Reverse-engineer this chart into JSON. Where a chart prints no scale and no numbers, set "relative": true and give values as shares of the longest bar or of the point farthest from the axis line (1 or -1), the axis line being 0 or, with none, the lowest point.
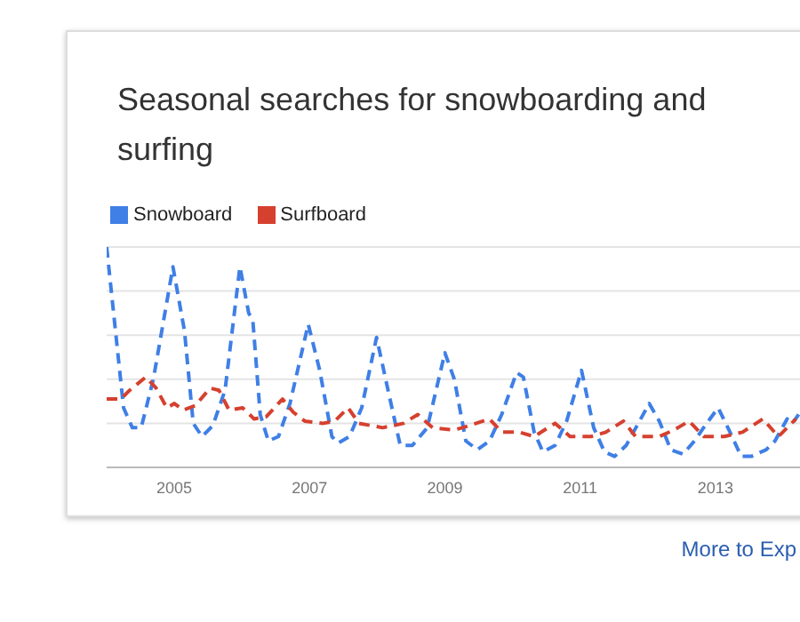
{
  "chart_data": {
    "type": "line",
    "title": "Seasonal searches for snowboarding and surfing",
    "relative": true,
    "line_style": "dashed",
    "marker": "none",
    "grid": "y",
    "legend": "top left",
    "xlim": [
      2004,
      2014.25
    ],
    "xticks": [
      2005,
      2007,
      2009,
      2011,
      2013
    ],
    "annotations": [
      "More to Exp"
    ],
    "series": [
      {
        "name": "Snowboard",
        "color": "#3f7fe6",
        "x": [
          2004.0,
          2004.25,
          2004.38,
          2004.51,
          2004.69,
          2004.98,
          2005.15,
          2005.28,
          2005.41,
          2005.57,
          2005.75,
          2005.97,
          2006.1,
          2006.16,
          2006.27,
          2006.39,
          2006.54,
          2006.71,
          2006.98,
          2007.15,
          2007.33,
          2007.42,
          2007.59,
          2007.77,
          2007.99,
          2008.16,
          2008.34,
          2008.52,
          2008.74,
          2009.0,
          2009.14,
          2009.31,
          2009.48,
          2009.66,
          2009.84,
          2010.06,
          2010.16,
          2010.32,
          2010.45,
          2010.63,
          2010.8,
          2011.02,
          2011.2,
          2011.36,
          2011.51,
          2011.68,
          2011.86,
          2012.02,
          2012.17,
          2012.34,
          2012.52,
          2012.69,
          2012.87,
          2013.04,
          2013.2,
          2013.38,
          2013.53,
          2013.75,
          2013.88,
          2014.06,
          2014.14,
          2014.23
        ],
        "values": [
          1.0,
          0.27,
          0.18,
          0.18,
          0.4,
          0.91,
          0.62,
          0.2,
          0.14,
          0.19,
          0.35,
          0.91,
          0.7,
          0.67,
          0.24,
          0.12,
          0.14,
          0.29,
          0.65,
          0.44,
          0.14,
          0.11,
          0.14,
          0.27,
          0.59,
          0.35,
          0.1,
          0.1,
          0.18,
          0.52,
          0.4,
          0.12,
          0.08,
          0.12,
          0.24,
          0.43,
          0.41,
          0.16,
          0.07,
          0.1,
          0.21,
          0.44,
          0.18,
          0.07,
          0.05,
          0.1,
          0.2,
          0.29,
          0.21,
          0.08,
          0.06,
          0.12,
          0.2,
          0.27,
          0.17,
          0.05,
          0.05,
          0.08,
          0.12,
          0.22,
          0.2,
          0.24
        ]
      },
      {
        "name": "Surfboard",
        "color": "#d6402f",
        "x": [
          2004.0,
          2004.21,
          2004.34,
          2004.58,
          2004.73,
          2004.89,
          2005.0,
          2005.13,
          2005.31,
          2005.53,
          2005.66,
          2005.81,
          2006.01,
          2006.18,
          2006.36,
          2006.6,
          2006.76,
          2006.93,
          2007.2,
          2007.37,
          2007.57,
          2007.73,
          2008.08,
          2008.39,
          2008.6,
          2008.82,
          2009.13,
          2009.26,
          2009.66,
          2009.84,
          2010.1,
          2010.32,
          2010.63,
          2010.85,
          2011.16,
          2011.38,
          2011.64,
          2011.82,
          2012.17,
          2012.39,
          2012.61,
          2012.83,
          2013.13,
          2013.4,
          2013.7,
          2013.93,
          2014.19
        ],
        "values": [
          0.31,
          0.31,
          0.35,
          0.41,
          0.36,
          0.27,
          0.29,
          0.26,
          0.28,
          0.36,
          0.35,
          0.26,
          0.27,
          0.22,
          0.23,
          0.31,
          0.25,
          0.21,
          0.2,
          0.21,
          0.27,
          0.2,
          0.18,
          0.2,
          0.24,
          0.18,
          0.17,
          0.18,
          0.22,
          0.16,
          0.16,
          0.14,
          0.2,
          0.14,
          0.14,
          0.16,
          0.21,
          0.14,
          0.14,
          0.17,
          0.21,
          0.14,
          0.14,
          0.16,
          0.22,
          0.14,
          0.22
        ]
      }
    ]
  }
}
